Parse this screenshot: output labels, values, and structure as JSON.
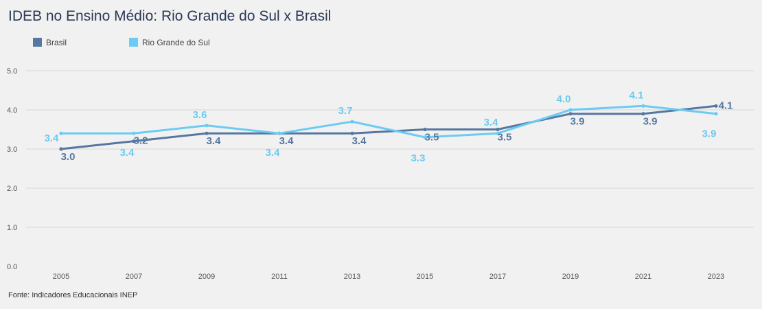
{
  "title": "IDEB no Ensino Médio: Rio Grande do Sul x Brasil",
  "source": "Fonte: Indicadores Educacionais INEP",
  "colors": {
    "brasil": "#5677a1",
    "rs": "#6ccbf2",
    "grid": "#d7d7d7",
    "tick": "#555555"
  },
  "chart_data": {
    "type": "line",
    "title": "IDEB no Ensino Médio: Rio Grande do Sul x Brasil",
    "xlabel": "",
    "ylabel": "",
    "x": [
      "2005",
      "2007",
      "2009",
      "2011",
      "2013",
      "2015",
      "2017",
      "2019",
      "2021",
      "2023"
    ],
    "ylim": [
      0,
      5
    ],
    "yticks": [
      "0.0",
      "1.0",
      "2.0",
      "3.0",
      "4.0",
      "5.0"
    ],
    "grid": true,
    "legend": "top-left",
    "series": [
      {
        "name": "Brasil",
        "color": "#5677a1",
        "values": [
          3.0,
          3.2,
          3.4,
          3.4,
          3.4,
          3.5,
          3.5,
          3.9,
          3.9,
          4.1
        ],
        "labels": [
          "3.0",
          "3.2",
          "3.4",
          "3.4",
          "3.4",
          "3.5",
          "3.5",
          "3.9",
          "3.9",
          "4.1"
        ]
      },
      {
        "name": "Rio Grande do Sul",
        "color": "#6ccbf2",
        "values": [
          3.4,
          3.4,
          3.6,
          3.4,
          3.7,
          3.3,
          3.4,
          4.0,
          4.1,
          3.9
        ],
        "labels": [
          "3.4",
          "3.4",
          "3.6",
          "3.4",
          "3.7",
          "3.3",
          "3.4",
          "4.0",
          "4.1",
          "3.9"
        ]
      }
    ]
  }
}
